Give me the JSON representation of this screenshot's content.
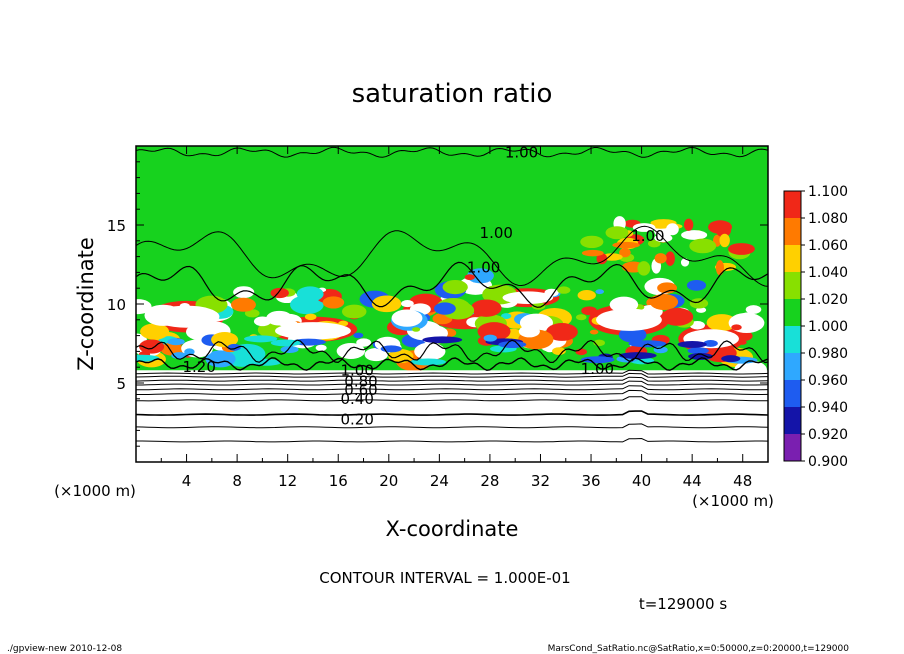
{
  "chart_data": {
    "type": "heatmap",
    "title": "saturation ratio",
    "xlabel": "X-coordinate",
    "ylabel": "Z-coordinate",
    "x_unit": "(×1000 m)",
    "z_unit": "(×1000 m)",
    "xlim": [
      0,
      50
    ],
    "ylim": [
      0,
      20
    ],
    "x_ticks": [
      "4",
      "8",
      "12",
      "16",
      "20",
      "24",
      "28",
      "32",
      "36",
      "40",
      "44",
      "48"
    ],
    "y_ticks": [
      "5",
      "10",
      "15"
    ],
    "colorbar": {
      "ticks": [
        "0.900",
        "0.920",
        "0.940",
        "0.960",
        "0.980",
        "1.000",
        "1.020",
        "1.040",
        "1.060",
        "1.080",
        "1.100"
      ],
      "colors": [
        "#7a1fb0",
        "#1414a8",
        "#1e5cf0",
        "#2fa8ff",
        "#18e0d8",
        "#17d21e",
        "#88e000",
        "#ffd000",
        "#ff7a00",
        "#f02818",
        "#ff8c8c"
      ]
    },
    "contour_labels": [
      "1.00",
      "1.00",
      "1.00",
      "1.00",
      "1.00",
      "1.00",
      "1.20",
      "0.80",
      "0.60",
      "0.40",
      "0.20"
    ],
    "contour_interval_text": "CONTOUR INTERVAL = 1.000E-01",
    "time_text": "t=129000 s"
  },
  "footer": {
    "left": "./gpview-new  2010-12-08",
    "right": "MarsCond_SatRatio.nc@SatRatio,x=0:50000,z=0:20000,t=129000"
  }
}
